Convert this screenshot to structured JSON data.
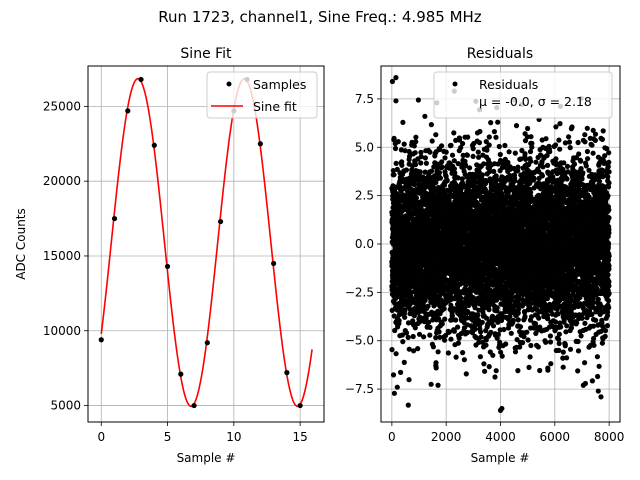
{
  "figure": {
    "suptitle": "Run 1723, channel1, Sine Freq.: 4.985 MHz"
  },
  "chart_data": [
    {
      "type": "scatter",
      "title": "Sine Fit",
      "xlabel": "Sample #",
      "ylabel": "ADC Counts",
      "xlim": [
        -1,
        16.8
      ],
      "ylim": [
        3900,
        27700
      ],
      "xticks": [
        0,
        5,
        10,
        15
      ],
      "yticks": [
        5000,
        10000,
        15000,
        20000,
        25000
      ],
      "xtick_labels": [
        "0",
        "5",
        "10",
        "15"
      ],
      "ytick_labels": [
        "5000",
        "10000",
        "15000",
        "20000",
        "25000"
      ],
      "grid": true,
      "legend_position": "top-right",
      "series": [
        {
          "name": "Samples",
          "style": "points",
          "color": "#000000",
          "x": [
            0,
            1,
            2,
            3,
            4,
            5,
            6,
            7,
            8,
            9,
            10,
            11,
            12,
            13,
            14,
            15
          ],
          "y": [
            9400,
            17500,
            24700,
            26800,
            22400,
            14300,
            7100,
            5000,
            9200,
            17300,
            24700,
            26800,
            22500,
            14500,
            7200,
            5000
          ]
        },
        {
          "name": "Sine fit",
          "style": "line",
          "color": "#ff0000",
          "model": {
            "form": "offset + amplitude * sin(2*pi*frequency_per_sample*x + phase)",
            "offset": 15900,
            "amplitude": 10950,
            "frequency_per_sample": 0.1246,
            "phase": -0.592,
            "x_range": [
              0,
              15.9
            ]
          }
        }
      ]
    },
    {
      "type": "scatter",
      "title": "Residuals",
      "xlabel": "Sample #",
      "ylabel": "",
      "xlim": [
        -400,
        8400
      ],
      "ylim": [
        -9.2,
        9.2
      ],
      "xticks": [
        0,
        2000,
        4000,
        6000,
        8000
      ],
      "yticks": [
        -7.5,
        -5.0,
        -2.5,
        0.0,
        2.5,
        5.0,
        7.5
      ],
      "xtick_labels": [
        "0",
        "2000",
        "4000",
        "6000",
        "8000"
      ],
      "ytick_labels": [
        "−7.5",
        "−5.0",
        "−2.5",
        "0.0",
        "2.5",
        "5.0",
        "7.5"
      ],
      "grid": true,
      "legend_position": "top-right",
      "series": [
        {
          "name": "Residuals",
          "style": "points",
          "color": "#000000",
          "n_points": 8000,
          "distribution": {
            "mean": -0.0,
            "std": 2.18,
            "x_range": [
              0,
              7999
            ]
          },
          "notable_points": [
            {
              "x": 150,
              "y": 8.6
            },
            {
              "x": 150,
              "y": 7.4
            },
            {
              "x": 2300,
              "y": 7.9
            },
            {
              "x": 4000,
              "y": -8.6
            },
            {
              "x": 4050,
              "y": -8.5
            },
            {
              "x": 200,
              "y": -7.4
            },
            {
              "x": 7600,
              "y": -7.6
            },
            {
              "x": 7700,
              "y": -7.9
            },
            {
              "x": 7050,
              "y": -7.3
            },
            {
              "x": 1700,
              "y": -7.3
            }
          ]
        }
      ],
      "legend_extra": "μ = -0.0, σ = 2.18"
    }
  ]
}
